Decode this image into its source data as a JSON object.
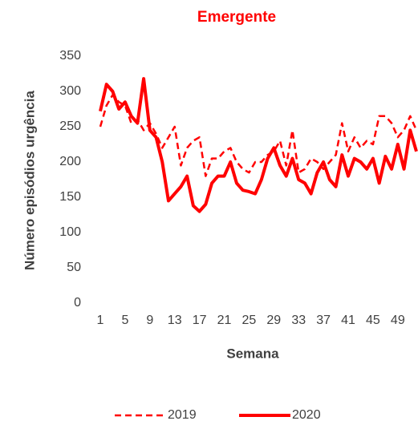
{
  "chart_data": {
    "type": "line",
    "title": "Emergente",
    "x_label": "Semana",
    "y_label": "Número episódios urgência",
    "x": [
      1,
      2,
      3,
      4,
      5,
      6,
      7,
      8,
      9,
      10,
      11,
      12,
      13,
      14,
      15,
      16,
      17,
      18,
      19,
      20,
      21,
      22,
      23,
      24,
      25,
      26,
      27,
      28,
      29,
      30,
      31,
      32,
      33,
      34,
      35,
      36,
      37,
      38,
      39,
      40,
      41,
      42,
      43,
      44,
      45,
      46,
      47,
      48,
      49,
      50,
      51,
      52
    ],
    "xlim": [
      1,
      52
    ],
    "xticks": [
      1,
      5,
      9,
      13,
      17,
      21,
      25,
      29,
      33,
      37,
      41,
      45,
      49
    ],
    "ylim": [
      0,
      350
    ],
    "yticks": [
      0,
      50,
      100,
      150,
      200,
      250,
      300,
      350
    ],
    "grid": false,
    "legend": "bottom",
    "series": [
      {
        "name": "2019",
        "color": "#ff0000",
        "dash": true,
        "values": [
          250,
          280,
          295,
          285,
          280,
          255,
          260,
          245,
          255,
          240,
          220,
          235,
          250,
          195,
          220,
          230,
          235,
          180,
          205,
          205,
          215,
          220,
          200,
          190,
          185,
          200,
          200,
          210,
          215,
          230,
          195,
          245,
          185,
          190,
          205,
          200,
          190,
          200,
          210,
          255,
          215,
          235,
          220,
          230,
          225,
          265,
          265,
          255,
          235,
          245,
          265,
          245
        ]
      },
      {
        "name": "2020",
        "color": "#ff0000",
        "dash": false,
        "values": [
          272,
          310,
          300,
          275,
          285,
          265,
          255,
          318,
          245,
          235,
          200,
          145,
          155,
          165,
          180,
          138,
          130,
          140,
          170,
          180,
          180,
          200,
          170,
          160,
          158,
          155,
          175,
          205,
          220,
          195,
          180,
          205,
          175,
          170,
          155,
          185,
          200,
          175,
          165,
          210,
          180,
          205,
          200,
          190,
          205,
          170,
          208,
          190,
          225,
          190,
          245,
          215
        ]
      }
    ]
  }
}
